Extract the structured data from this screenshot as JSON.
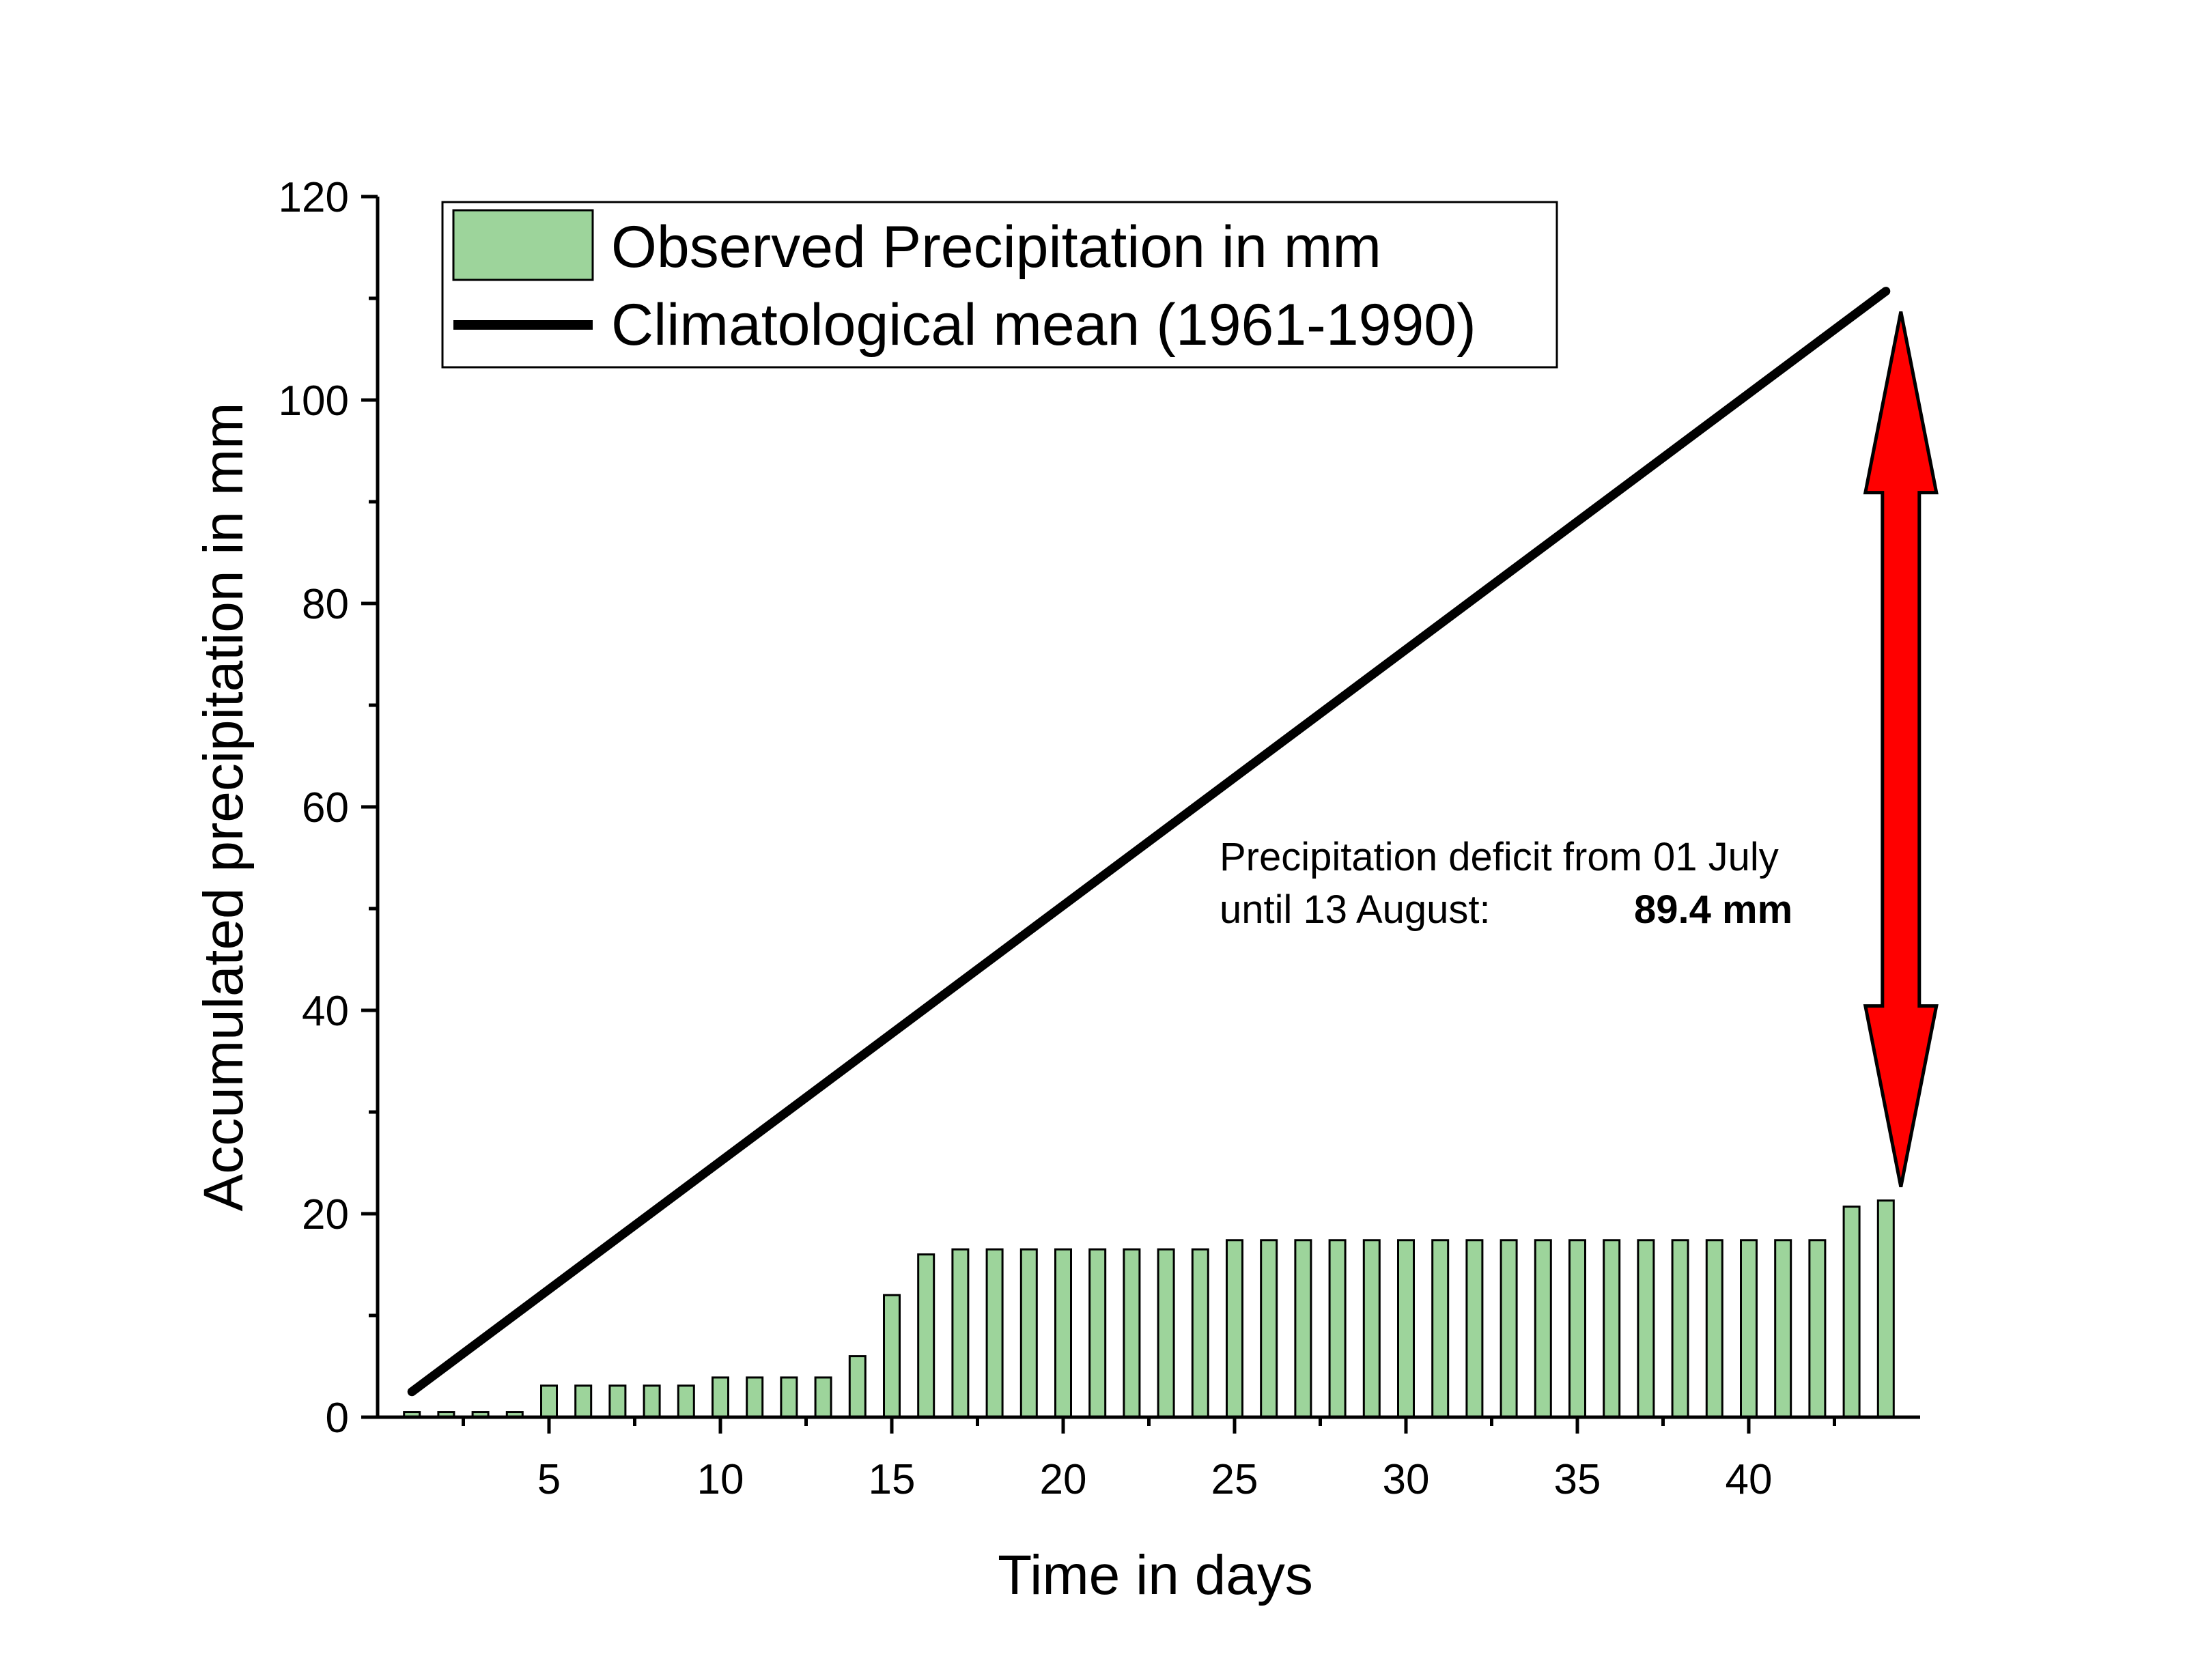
{
  "colors": {
    "bar_fill": "#9dd49b",
    "bar_stroke": "#000000",
    "mean_line": "#000000",
    "arrow_fill": "#ff0000",
    "arrow_stroke": "#000000"
  },
  "chart_data": {
    "type": "bar",
    "xlabel": "Time in days",
    "ylabel": "Accumulated precipitation in mm",
    "xlim": [
      0,
      45
    ],
    "ylim": [
      0,
      120
    ],
    "x_ticks": [
      5,
      10,
      15,
      20,
      25,
      30,
      35,
      40
    ],
    "y_ticks": [
      0,
      20,
      40,
      60,
      80,
      100,
      120
    ],
    "grid": false,
    "legend_position": "top-left",
    "series": [
      {
        "name": "Observed Precipitation in mm",
        "type": "bar",
        "x": [
          1,
          2,
          3,
          4,
          5,
          6,
          7,
          8,
          9,
          10,
          11,
          12,
          13,
          14,
          15,
          16,
          17,
          18,
          19,
          20,
          21,
          22,
          23,
          24,
          25,
          26,
          27,
          28,
          29,
          30,
          31,
          32,
          33,
          34,
          35,
          36,
          37,
          38,
          39,
          40,
          41,
          42,
          43,
          44
        ],
        "values": [
          0.5,
          0.5,
          0.5,
          0.5,
          3.1,
          3.1,
          3.1,
          3.1,
          3.1,
          3.9,
          3.9,
          3.9,
          3.9,
          6.0,
          12.0,
          16.0,
          16.5,
          16.5,
          16.5,
          16.5,
          16.5,
          16.5,
          16.5,
          16.5,
          17.4,
          17.4,
          17.4,
          17.4,
          17.4,
          17.4,
          17.4,
          17.4,
          17.4,
          17.4,
          17.4,
          17.4,
          17.4,
          17.4,
          17.4,
          17.4,
          17.4,
          17.4,
          20.7,
          21.3
        ]
      },
      {
        "name": "Climatological mean (1961-1990)",
        "type": "line",
        "x": [
          1,
          44
        ],
        "values": [
          2.5,
          110.7
        ]
      }
    ],
    "annotations": {
      "deficit_line1": "Precipitation deficit from 01 July",
      "deficit_line2": "until 13 August:",
      "deficit_value": "89.4 mm",
      "arrow_from": 21.3,
      "arrow_to": 110.7,
      "arrow_x": 44
    }
  }
}
